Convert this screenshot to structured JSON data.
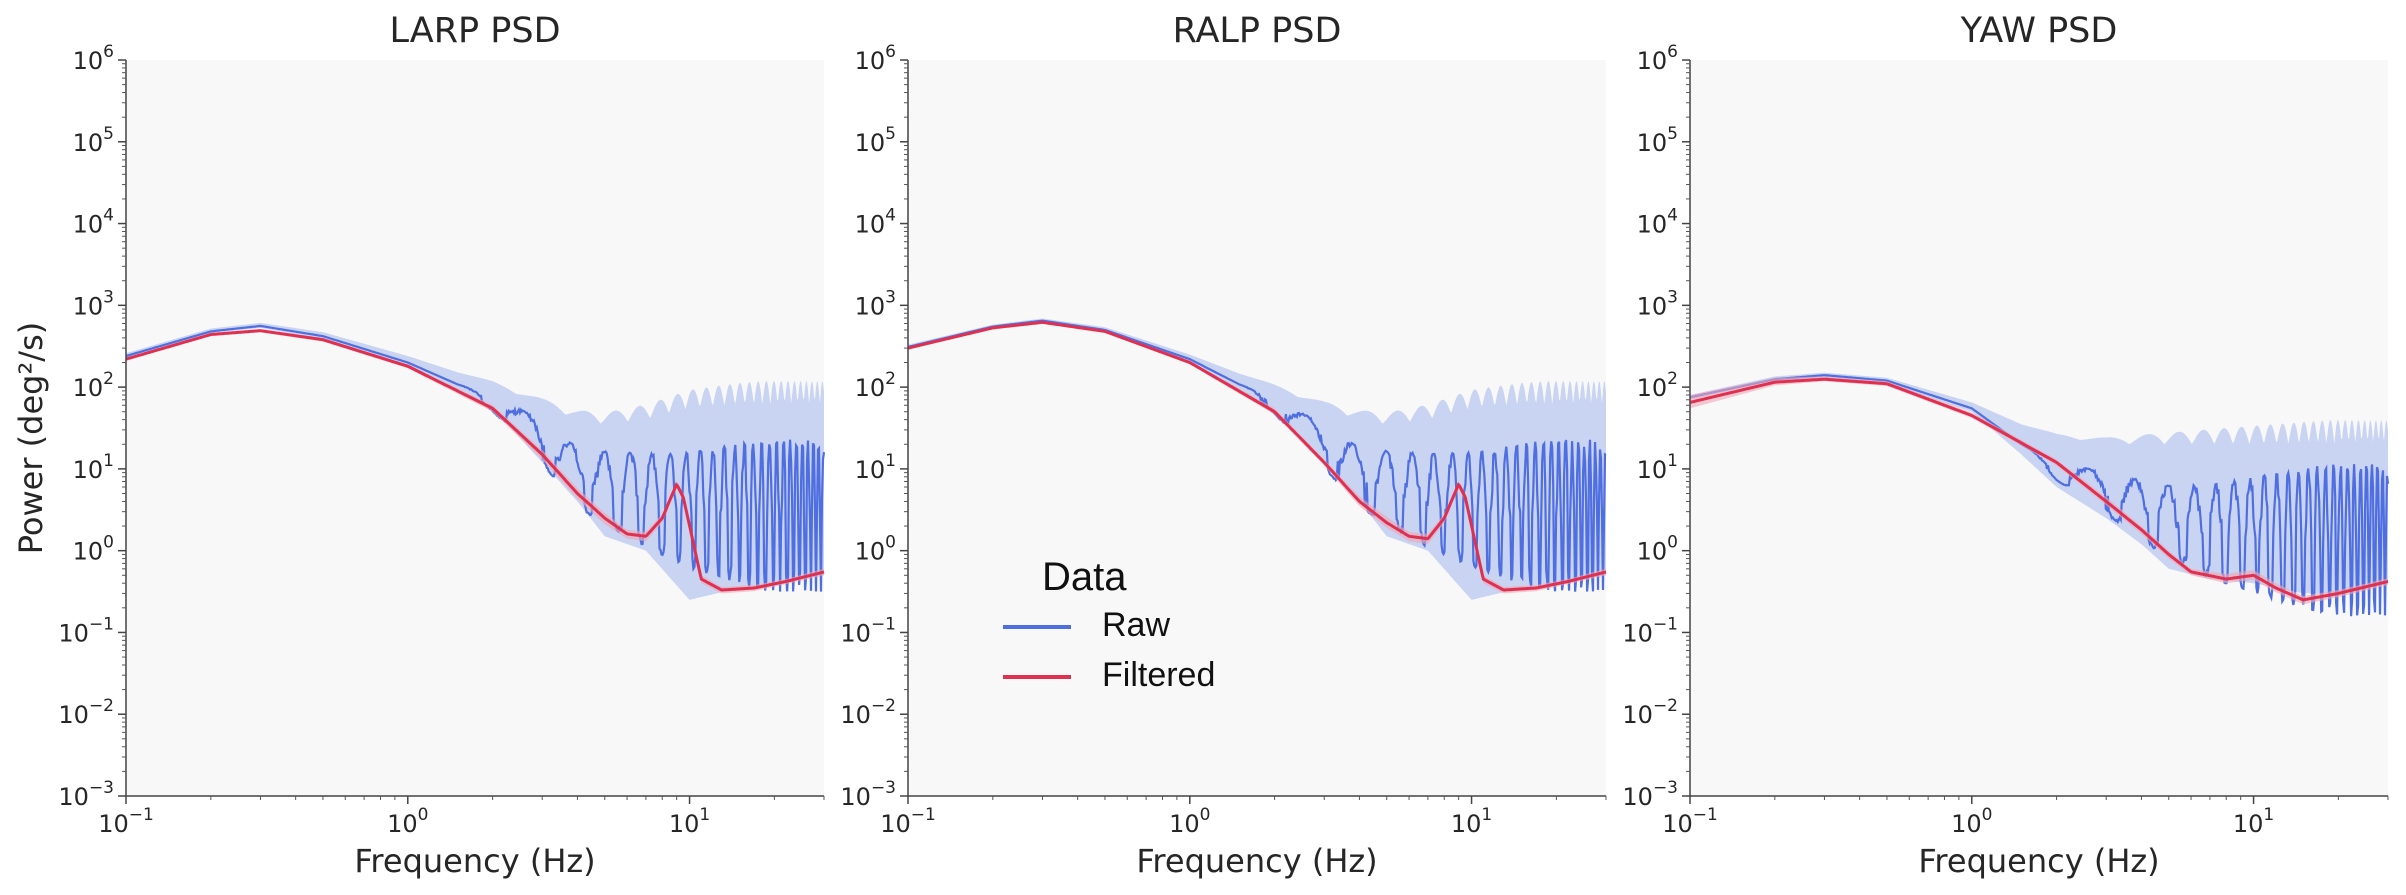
{
  "colors": {
    "raw": "#4f6fe0",
    "raw_band": "#b9c7f0",
    "filtered": "#e0304f",
    "filtered_band": "#f0a7b6",
    "plot_background": "#f8f8f8"
  },
  "ylabel": "Power (deg²/s)",
  "legend": {
    "title": "Data",
    "placement": "center",
    "items": [
      {
        "label": "Raw",
        "color": "#4f6fe0"
      },
      {
        "label": "Filtered",
        "color": "#e0304f"
      }
    ]
  },
  "x_ticks": [
    "-1",
    "0",
    "1"
  ],
  "y_ticks": [
    "-3",
    "-2",
    "-1",
    "0",
    "1",
    "2",
    "3",
    "4",
    "5",
    "6"
  ],
  "chart_data": [
    {
      "type": "line",
      "title": "LARP PSD",
      "xlabel": "Frequency (Hz)",
      "ylabel": "Power (deg²/s)",
      "xscale": "log",
      "yscale": "log",
      "xlim": [
        0.1,
        30
      ],
      "ylim": [
        0.001,
        1000000
      ],
      "grid": false,
      "series": [
        {
          "name": "Raw",
          "x": [
            0.1,
            0.2,
            0.3,
            0.5,
            1.0,
            2.0,
            3.0,
            4.0,
            5.0,
            7.0,
            10.0,
            15.0,
            20.0,
            30.0
          ],
          "y": [
            240,
            480,
            560,
            420,
            200,
            70,
            25,
            10,
            8,
            6,
            5,
            5,
            5,
            5
          ],
          "lower": [
            230,
            460,
            530,
            390,
            180,
            55,
            12,
            4,
            1.5,
            1,
            0.25,
            0.35,
            0.4,
            0.5
          ],
          "upper": [
            260,
            520,
            610,
            470,
            240,
            110,
            60,
            40,
            35,
            40,
            55,
            60,
            60,
            60
          ]
        },
        {
          "name": "Filtered",
          "x": [
            0.1,
            0.2,
            0.3,
            0.5,
            1.0,
            2.0,
            3.0,
            4.0,
            5.0,
            6.0,
            7.0,
            8.0,
            9.0,
            9.5,
            11.0,
            13.0,
            17.0,
            22.0,
            30.0
          ],
          "y": [
            220,
            440,
            490,
            380,
            180,
            55,
            15,
            5,
            2.5,
            1.6,
            1.5,
            2.5,
            6.5,
            4.5,
            0.45,
            0.33,
            0.35,
            0.42,
            0.55
          ],
          "lower": [
            210,
            420,
            470,
            360,
            170,
            50,
            13,
            4.3,
            2.1,
            1.4,
            1.3,
            2.2,
            5.8,
            4.0,
            0.4,
            0.3,
            0.32,
            0.39,
            0.5
          ],
          "upper": [
            230,
            460,
            510,
            400,
            190,
            60,
            17,
            5.8,
            2.9,
            1.8,
            1.7,
            2.8,
            7.2,
            5.0,
            0.5,
            0.36,
            0.38,
            0.45,
            0.6
          ]
        }
      ]
    },
    {
      "type": "line",
      "title": "RALP PSD",
      "xlabel": "Frequency (Hz)",
      "ylabel": "Power (deg²/s)",
      "xscale": "log",
      "yscale": "log",
      "xlim": [
        0.1,
        30
      ],
      "ylim": [
        0.001,
        1000000
      ],
      "grid": false,
      "series": [
        {
          "name": "Raw",
          "x": [
            0.1,
            0.2,
            0.3,
            0.5,
            1.0,
            2.0,
            3.0,
            4.0,
            5.0,
            7.0,
            10.0,
            15.0,
            20.0,
            30.0
          ],
          "y": [
            310,
            550,
            650,
            500,
            220,
            65,
            22,
            10,
            8,
            6,
            5,
            5,
            5,
            5
          ],
          "lower": [
            300,
            530,
            620,
            470,
            200,
            50,
            12,
            4,
            1.5,
            1,
            0.25,
            0.35,
            0.4,
            0.5
          ],
          "upper": [
            330,
            580,
            690,
            540,
            250,
            100,
            55,
            40,
            35,
            40,
            55,
            60,
            60,
            60
          ]
        },
        {
          "name": "Filtered",
          "x": [
            0.1,
            0.2,
            0.3,
            0.5,
            1.0,
            2.0,
            3.0,
            4.0,
            5.0,
            6.0,
            7.0,
            8.0,
            9.0,
            9.5,
            11.0,
            13.0,
            17.0,
            22.0,
            30.0
          ],
          "y": [
            300,
            530,
            620,
            480,
            200,
            50,
            12,
            4,
            2.2,
            1.5,
            1.4,
            2.5,
            6.5,
            4.5,
            0.45,
            0.33,
            0.35,
            0.42,
            0.55
          ],
          "lower": [
            290,
            510,
            600,
            460,
            190,
            46,
            11,
            3.5,
            1.9,
            1.3,
            1.2,
            2.2,
            5.8,
            4.0,
            0.4,
            0.3,
            0.32,
            0.39,
            0.5
          ],
          "upper": [
            310,
            550,
            640,
            500,
            210,
            55,
            13,
            4.6,
            2.6,
            1.7,
            1.6,
            2.8,
            7.2,
            5.0,
            0.5,
            0.36,
            0.38,
            0.45,
            0.6
          ]
        }
      ]
    },
    {
      "type": "line",
      "title": "YAW PSD",
      "xlabel": "Frequency (Hz)",
      "ylabel": "Power (deg²/s)",
      "xscale": "log",
      "yscale": "log",
      "xlim": [
        0.1,
        30
      ],
      "ylim": [
        0.001,
        1000000
      ],
      "grid": false,
      "series": [
        {
          "name": "Raw",
          "x": [
            0.1,
            0.2,
            0.3,
            0.5,
            1.0,
            1.5,
            2.0,
            3.0,
            4.0,
            5.0,
            7.0,
            10.0,
            15.0,
            20.0,
            30.0
          ],
          "y": [
            75,
            125,
            140,
            120,
            55,
            20,
            10,
            6,
            4,
            3,
            2.5,
            2.5,
            2.5,
            2.5,
            2.5
          ],
          "lower": [
            70,
            120,
            130,
            110,
            50,
            15,
            6,
            2.5,
            1.2,
            0.6,
            0.45,
            0.4,
            0.3,
            0.3,
            0.4
          ],
          "upper": [
            80,
            135,
            150,
            130,
            65,
            35,
            25,
            20,
            20,
            20,
            20,
            20,
            20,
            20,
            20
          ]
        },
        {
          "name": "Filtered",
          "x": [
            0.1,
            0.2,
            0.3,
            0.5,
            1.0,
            2.0,
            3.0,
            4.0,
            5.0,
            6.0,
            8.0,
            10.0,
            12.0,
            15.0,
            20.0,
            30.0
          ],
          "y": [
            65,
            115,
            125,
            110,
            45,
            12,
            4,
            1.8,
            0.9,
            0.55,
            0.45,
            0.5,
            0.35,
            0.25,
            0.3,
            0.42
          ],
          "lower": [
            55,
            105,
            118,
            103,
            42,
            11,
            3.6,
            1.6,
            0.8,
            0.5,
            0.4,
            0.44,
            0.31,
            0.22,
            0.27,
            0.38
          ],
          "upper": [
            80,
            130,
            135,
            118,
            49,
            13,
            4.5,
            2.0,
            1.0,
            0.6,
            0.52,
            0.58,
            0.4,
            0.28,
            0.33,
            0.46
          ]
        }
      ]
    }
  ]
}
